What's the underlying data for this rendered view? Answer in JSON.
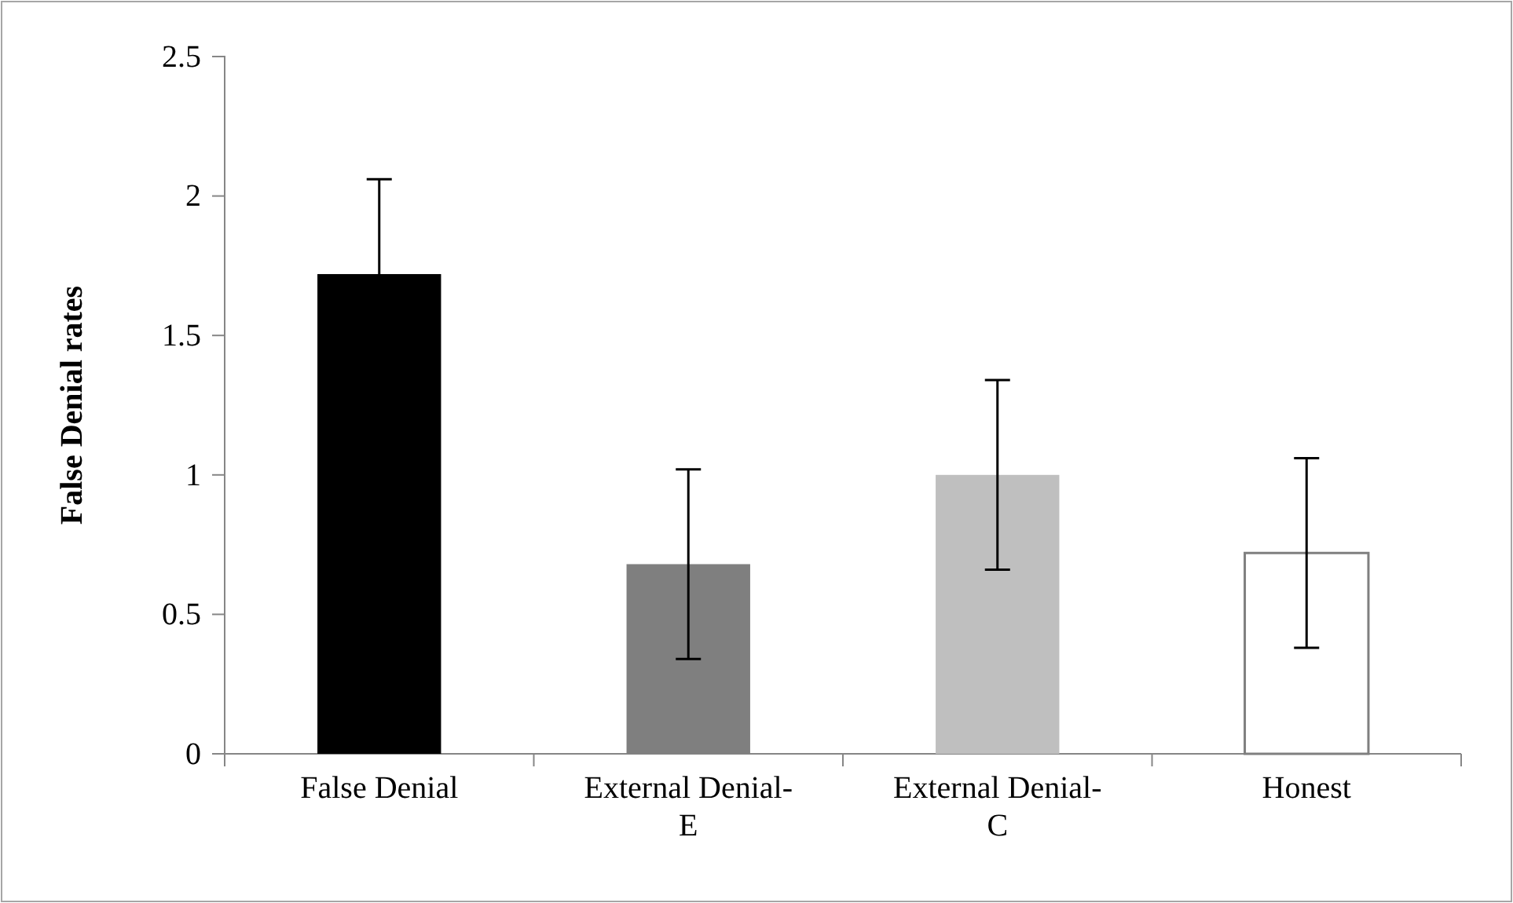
{
  "chart_data": {
    "type": "bar",
    "ylabel": "False Denial rates",
    "categories": [
      "False Denial",
      "External Denial-E",
      "External Denial-C",
      "Honest"
    ],
    "values": [
      1.72,
      0.68,
      1.0,
      0.72
    ],
    "colors": [
      "#000000",
      "#7f7f7f",
      "#bfbfbf",
      "#ffffff"
    ],
    "errors": [
      0.34,
      0.34,
      0.34,
      0.34
    ],
    "ylim": [
      0,
      2.5
    ],
    "yticks": [
      0,
      0.5,
      1,
      1.5,
      2,
      2.5
    ],
    "grid": false
  }
}
